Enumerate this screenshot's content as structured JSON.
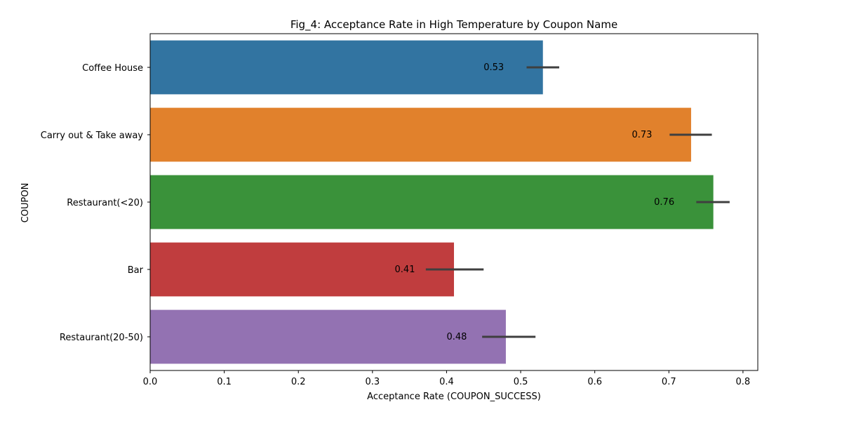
{
  "chart_data": {
    "type": "bar",
    "orientation": "horizontal",
    "title": "Fig_4: Acceptance Rate in High Temperature by Coupon Name",
    "xlabel": "Acceptance Rate (COUPON_SUCCESS)",
    "ylabel": "COUPON",
    "categories": [
      "Coffee House",
      "Carry out & Take away",
      "Restaurant(<20)",
      "Bar",
      "Restaurant(20-50)"
    ],
    "values": [
      0.53,
      0.73,
      0.76,
      0.41,
      0.48
    ],
    "data_labels": [
      "0.53",
      "0.73",
      "0.76",
      "0.41",
      "0.48"
    ],
    "error_bars": [
      [
        0.508,
        0.552
      ],
      [
        0.701,
        0.758
      ],
      [
        0.737,
        0.782
      ],
      [
        0.372,
        0.45
      ],
      [
        0.448,
        0.52
      ]
    ],
    "colors": [
      "#3274a1",
      "#e1812c",
      "#3a923a",
      "#c03d3e",
      "#9372b2"
    ],
    "error_color": "#3f3f3f",
    "xlim": [
      0,
      0.82
    ],
    "xticks": [
      0.0,
      0.1,
      0.2,
      0.3,
      0.4,
      0.5,
      0.6,
      0.7,
      0.8
    ],
    "xtick_labels": [
      "0.0",
      "0.1",
      "0.2",
      "0.3",
      "0.4",
      "0.5",
      "0.6",
      "0.7",
      "0.8"
    ],
    "grid": false,
    "legend": "none"
  }
}
